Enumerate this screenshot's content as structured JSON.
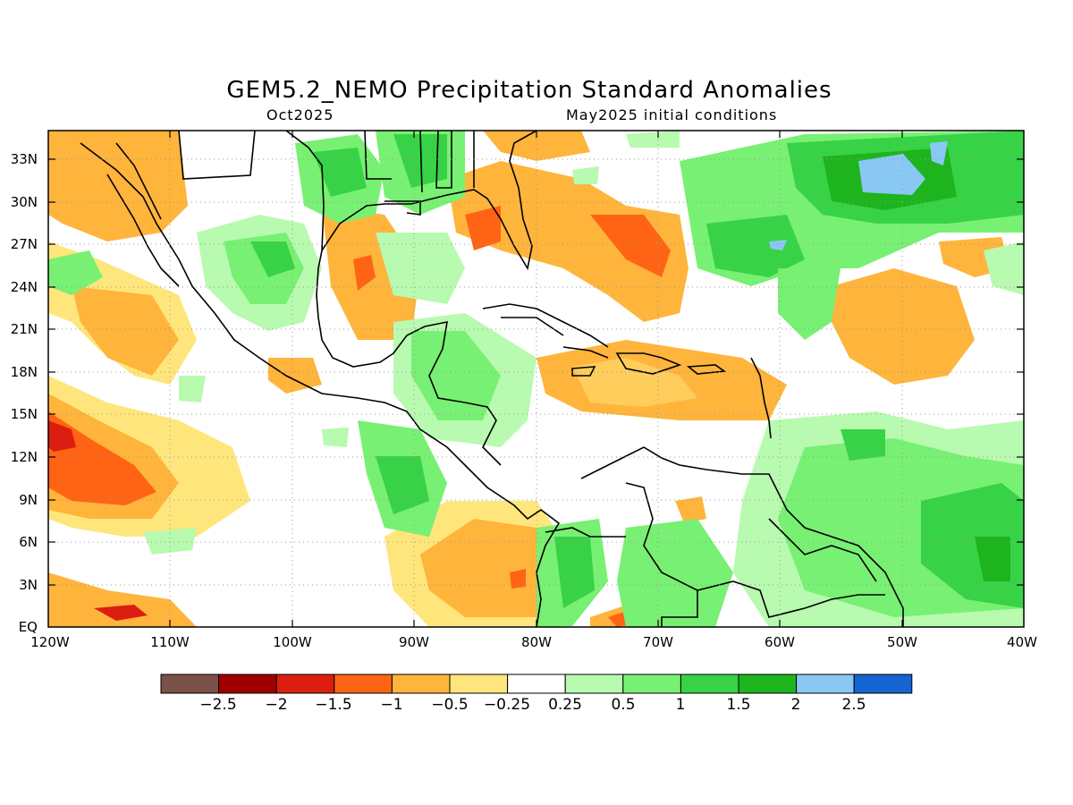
{
  "title": "GEM5.2_NEMO Precipitation Standard Anomalies",
  "subtitle_left": "Oct2025",
  "subtitle_right": "May2025 initial conditions",
  "lat_labels": [
    "33N",
    "30N",
    "27N",
    "24N",
    "21N",
    "18N",
    "15N",
    "12N",
    "9N",
    "6N",
    "3N",
    "EQ"
  ],
  "lon_labels": [
    "120W",
    "110W",
    "100W",
    "90W",
    "80W",
    "70W",
    "60W",
    "50W",
    "40W"
  ],
  "colorbar": {
    "colors": [
      "#7a5048",
      "#a00000",
      "#dc1e10",
      "#ff6414",
      "#ffb43c",
      "#ffe67c",
      "#ffffff",
      "#b8fab0",
      "#78f073",
      "#38d246",
      "#1eb41e",
      "#8ac8f4",
      "#1464d2"
    ],
    "labels": [
      "−2.5",
      "−2",
      "−1.5",
      "−1",
      "−0.5",
      "−0.25",
      "0.25",
      "0.5",
      "1",
      "1.5",
      "2",
      "2.5"
    ]
  },
  "map_region": {
    "lon_range": [
      -120,
      -40
    ],
    "lat_range": [
      0,
      35
    ]
  }
}
